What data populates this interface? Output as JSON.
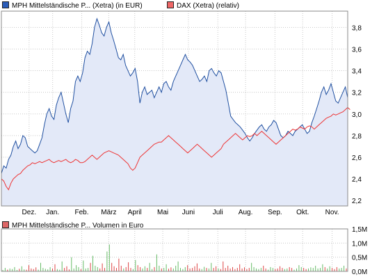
{
  "legend": {
    "series1": "MPH Mittelständische P... (Xetra) (in EUR)",
    "series2": "DAX (Xetra) (relativ)",
    "volume": "MPH Mittelständische P... Volumen in Euro"
  },
  "colors": {
    "series1": "#1f4fa0",
    "series1_fill": "#e3e9f8",
    "series2": "#ee3333",
    "volume_green": "#66bb66",
    "volume_red": "#dd4444",
    "grid": "#c8c8c8"
  },
  "chart_data": [
    {
      "type": "line",
      "x_labels": [
        "Dez.",
        "Jan.",
        "Feb.",
        "März",
        "April",
        "Mai",
        "Juni",
        "Juli",
        "Aug.",
        "Sep.",
        "Okt.",
        "Nov."
      ],
      "y_ticks": [
        "2,2",
        "2,4",
        "2,6",
        "2,8",
        "3,0",
        "3,2",
        "3,4",
        "3,6",
        "3,8"
      ],
      "ylim": [
        2.15,
        3.95
      ],
      "grid": true,
      "legend_position": "top",
      "series": [
        {
          "name": "MPH Mittelständische P... (Xetra) (in EUR)",
          "area": true,
          "values": [
            2.45,
            2.52,
            2.5,
            2.58,
            2.62,
            2.7,
            2.75,
            2.68,
            2.72,
            2.8,
            2.78,
            2.7,
            2.68,
            2.66,
            2.64,
            2.66,
            2.72,
            2.78,
            2.9,
            3.0,
            3.05,
            2.98,
            2.95,
            3.08,
            3.15,
            3.2,
            3.1,
            3.0,
            2.92,
            3.05,
            3.12,
            3.3,
            3.35,
            3.3,
            3.38,
            3.52,
            3.58,
            3.55,
            3.65,
            3.8,
            3.88,
            3.82,
            3.75,
            3.72,
            3.8,
            3.85,
            3.75,
            3.68,
            3.6,
            3.52,
            3.5,
            3.55,
            3.45,
            3.4,
            3.35,
            3.38,
            3.42,
            3.3,
            3.1,
            3.2,
            3.25,
            3.18,
            3.2,
            3.22,
            3.15,
            3.2,
            3.25,
            3.2,
            3.28,
            3.3,
            3.25,
            3.22,
            3.3,
            3.35,
            3.4,
            3.45,
            3.5,
            3.55,
            3.5,
            3.48,
            3.45,
            3.4,
            3.35,
            3.3,
            3.32,
            3.35,
            3.3,
            3.4,
            3.42,
            3.38,
            3.35,
            3.4,
            3.38,
            3.3,
            3.22,
            3.1,
            2.98,
            2.95,
            2.92,
            2.9,
            2.88,
            2.85,
            2.82,
            2.78,
            2.75,
            2.78,
            2.82,
            2.85,
            2.88,
            2.9,
            2.86,
            2.84,
            2.88,
            2.9,
            2.94,
            2.92,
            2.86,
            2.8,
            2.78,
            2.8,
            2.84,
            2.82,
            2.8,
            2.84,
            2.86,
            2.88,
            2.9,
            2.86,
            2.82,
            2.84,
            2.92,
            2.98,
            3.05,
            3.12,
            3.2,
            3.25,
            3.18,
            3.22,
            3.28,
            3.2,
            3.12,
            3.1,
            3.15,
            3.2,
            3.25,
            3.15
          ]
        },
        {
          "name": "DAX (Xetra) (relativ)",
          "area": false,
          "values": [
            2.4,
            2.38,
            2.33,
            2.3,
            2.36,
            2.4,
            2.42,
            2.44,
            2.45,
            2.48,
            2.5,
            2.52,
            2.53,
            2.55,
            2.54,
            2.55,
            2.56,
            2.55,
            2.56,
            2.57,
            2.58,
            2.56,
            2.55,
            2.56,
            2.57,
            2.56,
            2.57,
            2.58,
            2.56,
            2.55,
            2.56,
            2.58,
            2.57,
            2.55,
            2.55,
            2.56,
            2.58,
            2.6,
            2.62,
            2.6,
            2.58,
            2.6,
            2.62,
            2.64,
            2.65,
            2.66,
            2.65,
            2.64,
            2.63,
            2.62,
            2.6,
            2.58,
            2.56,
            2.54,
            2.5,
            2.48,
            2.5,
            2.55,
            2.6,
            2.62,
            2.64,
            2.66,
            2.68,
            2.7,
            2.72,
            2.73,
            2.74,
            2.74,
            2.76,
            2.78,
            2.8,
            2.78,
            2.76,
            2.74,
            2.72,
            2.7,
            2.68,
            2.66,
            2.64,
            2.66,
            2.68,
            2.7,
            2.72,
            2.7,
            2.68,
            2.66,
            2.64,
            2.62,
            2.6,
            2.62,
            2.64,
            2.66,
            2.68,
            2.72,
            2.74,
            2.76,
            2.78,
            2.8,
            2.82,
            2.8,
            2.78,
            2.76,
            2.78,
            2.8,
            2.79,
            2.8,
            2.82,
            2.8,
            2.82,
            2.84,
            2.82,
            2.8,
            2.78,
            2.76,
            2.74,
            2.72,
            2.74,
            2.76,
            2.78,
            2.8,
            2.82,
            2.84,
            2.86,
            2.85,
            2.86,
            2.88,
            2.87,
            2.86,
            2.88,
            2.89,
            2.88,
            2.86,
            2.88,
            2.9,
            2.92,
            2.94,
            2.96,
            2.97,
            2.98,
            3.0,
            2.99,
            3.0,
            3.01,
            3.02,
            3.04,
            3.06,
            3.04
          ]
        }
      ]
    },
    {
      "type": "bar",
      "y_ticks": [
        "0,0M",
        "0,5M",
        "1,0M",
        "1,5M"
      ],
      "ylim": [
        0,
        1.5
      ],
      "grid": true,
      "series": [
        {
          "name": "MPH Mittelständische P... Volumen in Euro",
          "values": [
            0.05,
            0.12,
            0.06,
            0.1,
            0.08,
            0.15,
            0.05,
            0.09,
            0.18,
            0.07,
            0.06,
            0.22,
            0.1,
            0.08,
            0.14,
            0.06,
            0.3,
            0.12,
            0.09,
            0.07,
            0.15,
            0.1,
            0.25,
            0.08,
            0.06,
            0.35,
            0.12,
            0.18,
            0.07,
            0.5,
            0.1,
            0.22,
            0.15,
            0.08,
            0.38,
            0.1,
            0.12,
            0.3,
            0.55,
            0.2,
            0.15,
            0.1,
            0.28,
            0.12,
            0.7,
            0.95,
            0.3,
            0.18,
            0.12,
            0.45,
            0.2,
            0.1,
            0.15,
            0.32,
            0.12,
            0.08,
            0.4,
            0.22,
            0.15,
            0.1,
            0.18,
            0.12,
            0.3,
            0.08,
            0.15,
            0.6,
            0.2,
            0.1,
            0.12,
            0.25,
            0.09,
            0.14,
            0.1,
            0.2,
            0.35,
            0.12,
            0.08,
            0.15,
            0.22,
            0.1,
            0.12,
            0.18,
            0.28,
            0.1,
            0.08,
            0.16,
            0.12,
            0.1,
            0.3,
            0.12,
            0.18,
            0.1,
            0.08,
            0.35,
            0.12,
            0.2,
            0.1,
            0.15,
            0.08,
            0.12,
            0.25,
            0.1,
            0.14,
            0.08,
            0.12,
            0.3,
            0.15,
            0.1,
            0.08,
            0.12,
            0.2,
            0.1,
            0.06,
            0.15,
            0.12,
            0.08,
            0.1,
            0.18,
            0.12,
            0.08,
            0.1,
            0.15,
            0.12,
            0.06,
            0.1,
            0.22,
            0.15,
            0.12,
            0.08,
            0.1,
            0.14,
            0.12,
            0.2,
            0.1,
            0.12,
            0.25,
            0.15,
            0.1,
            0.18,
            0.12,
            0.08,
            0.15,
            0.1,
            0.12,
            0.2,
            0.1
          ]
        }
      ]
    }
  ]
}
